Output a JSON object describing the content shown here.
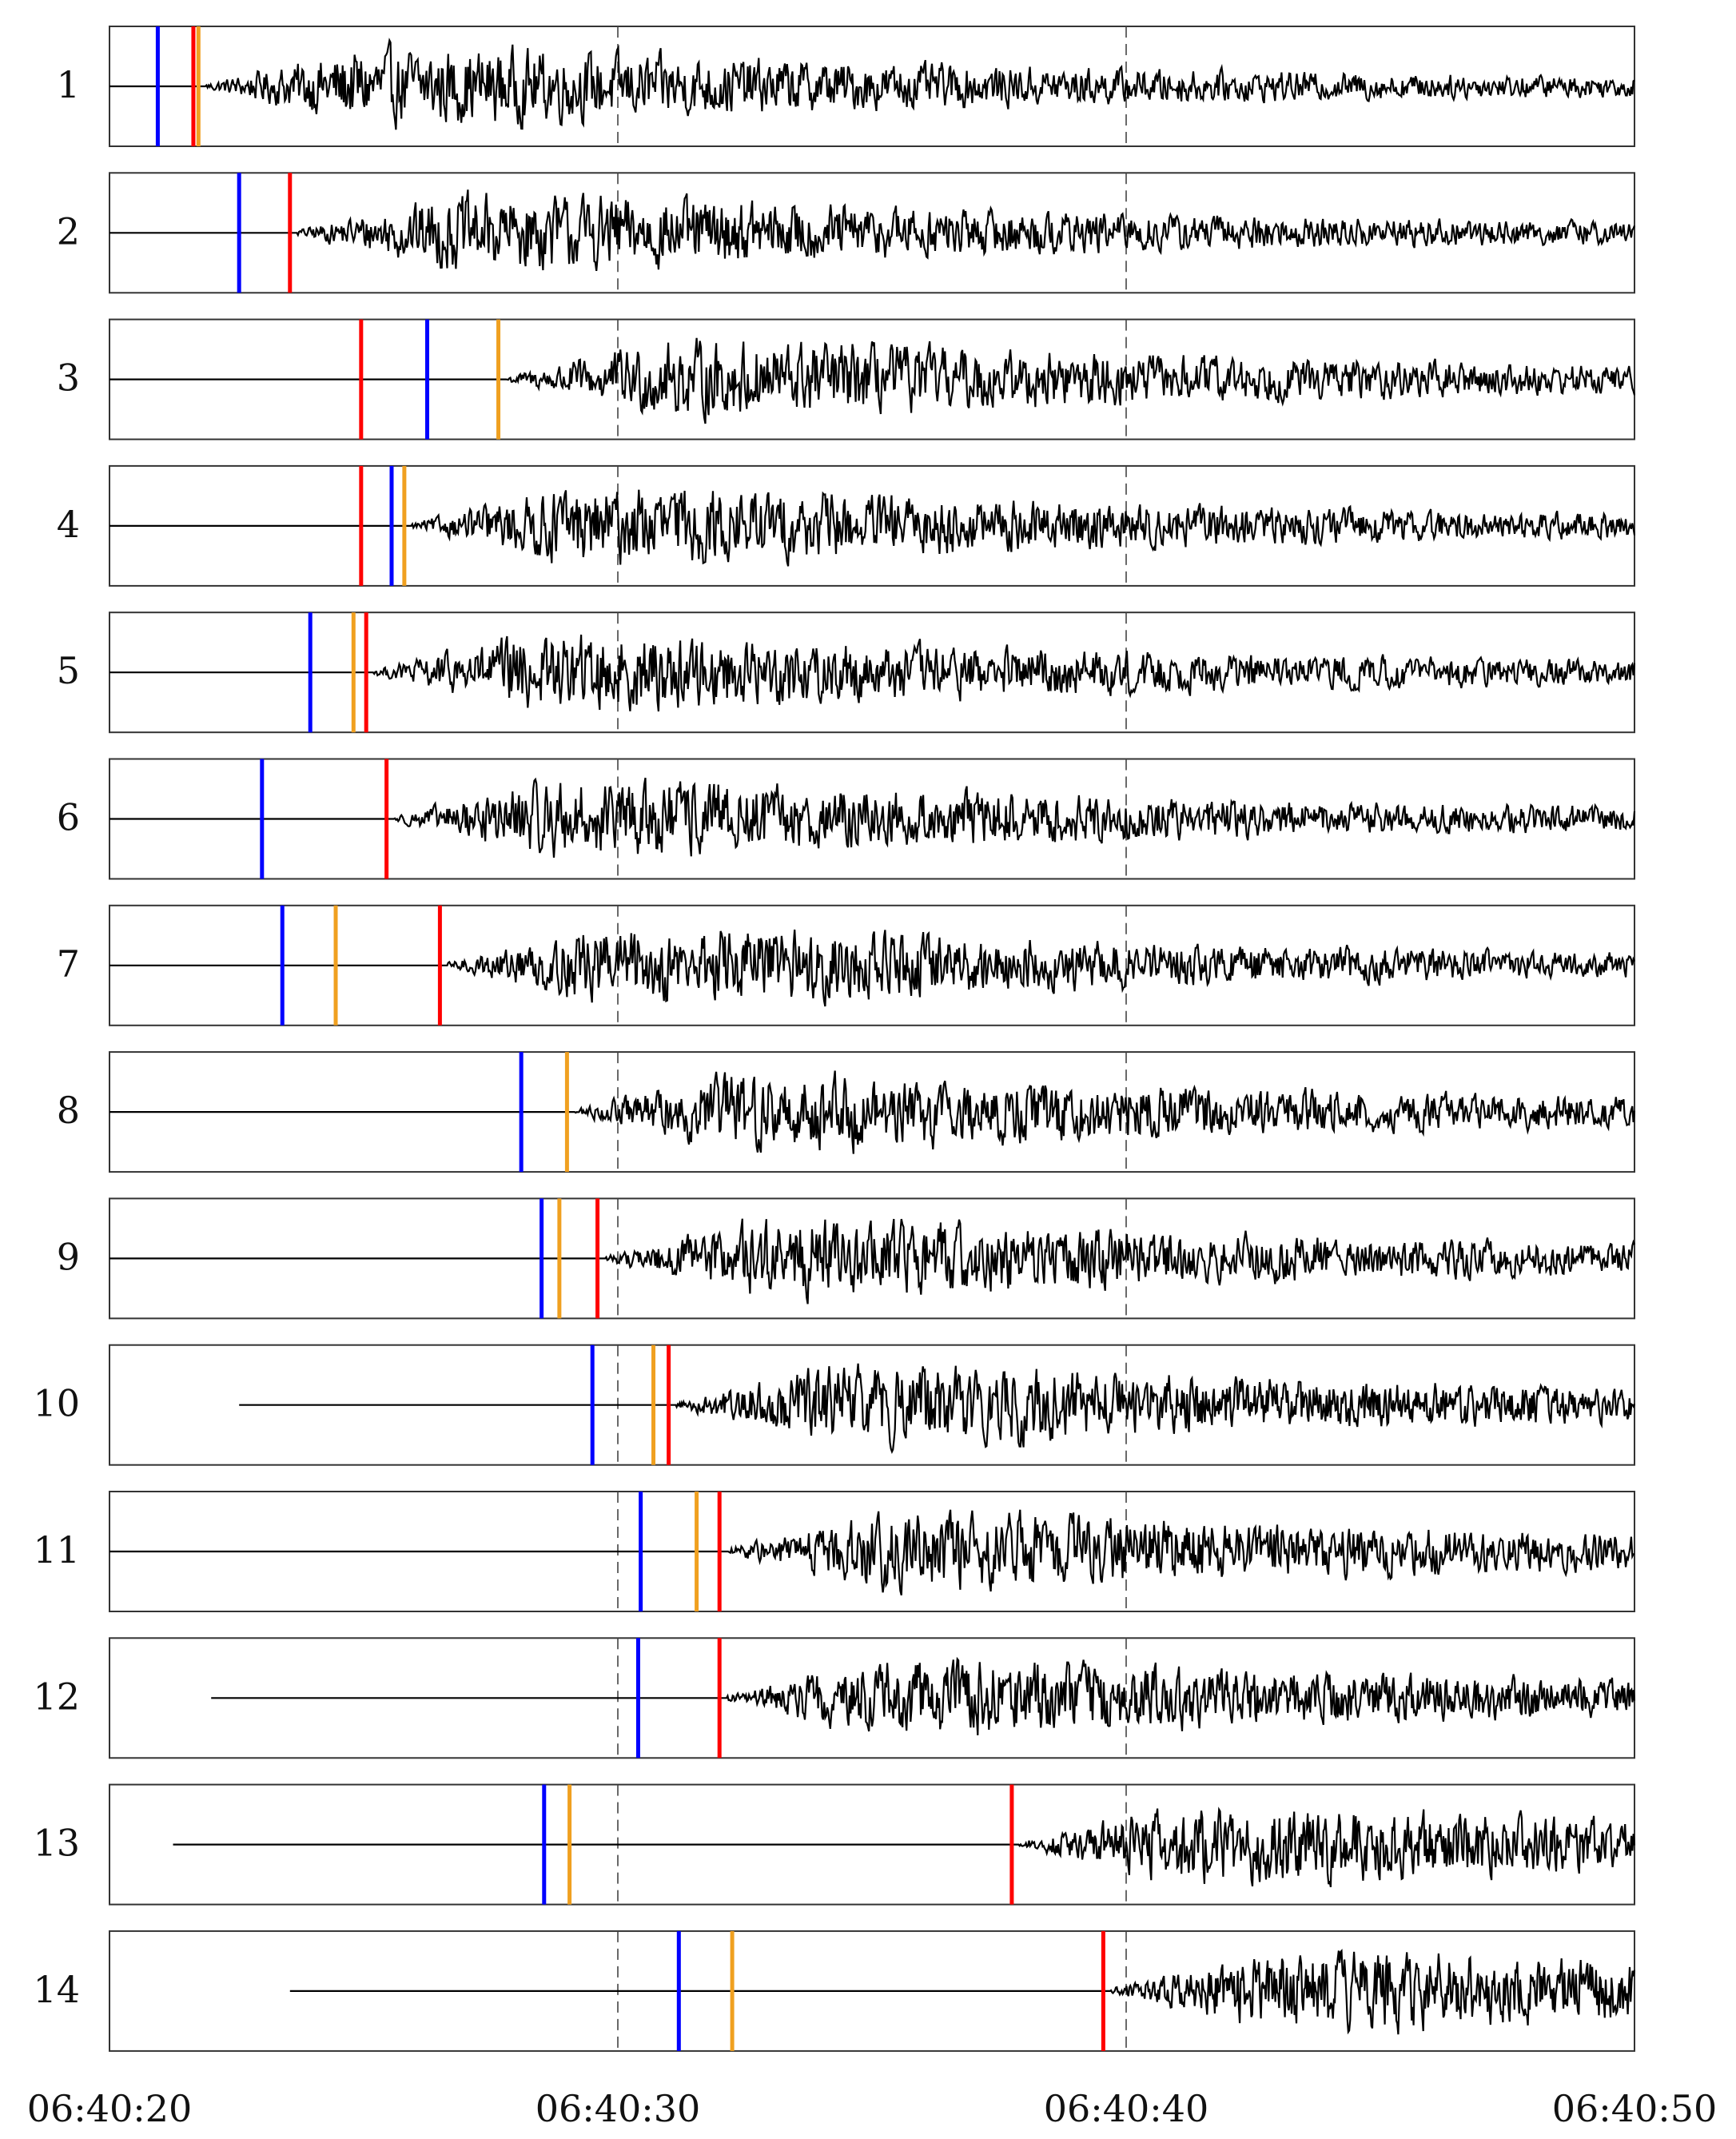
{
  "chart_data": {
    "type": "line",
    "title": "",
    "xlabel": "",
    "ylabel": "",
    "x_ticks": [
      "06:40:20",
      "06:40:30",
      "06:40:40",
      "06:40:50"
    ],
    "xlim": [
      "06:40:20",
      "06:40:50"
    ],
    "grid": "vertical dashed lines at 06:40:30 and 06:40:40",
    "pick_colors": {
      "blue": "#0000ff",
      "orange": "#f0a020",
      "red": "#ff0000",
      "trace": "#000000"
    },
    "traces": [
      {
        "label": "1",
        "data_start_s": 0.0,
        "picks": {
          "blue": 0.95,
          "red": 1.65,
          "orange": 1.75
        }
      },
      {
        "label": "2",
        "data_start_s": 0.0,
        "picks": {
          "blue": 2.55,
          "red": 3.55
        }
      },
      {
        "label": "3",
        "data_start_s": 0.0,
        "picks": {
          "red": 4.95,
          "blue": 6.25,
          "orange": 7.65
        }
      },
      {
        "label": "4",
        "data_start_s": 0.0,
        "picks": {
          "red": 4.95,
          "blue": 5.55,
          "orange": 5.8
        }
      },
      {
        "label": "5",
        "data_start_s": 0.0,
        "picks": {
          "blue": 3.95,
          "orange": 4.8,
          "red": 5.05
        }
      },
      {
        "label": "6",
        "data_start_s": 0.0,
        "picks": {
          "blue": 3.0,
          "red": 5.45
        }
      },
      {
        "label": "7",
        "data_start_s": 0.0,
        "picks": {
          "blue": 3.4,
          "orange": 4.45,
          "red": 6.5
        }
      },
      {
        "label": "8",
        "data_start_s": 0.0,
        "picks": {
          "blue": 8.1,
          "orange": 9.0
        }
      },
      {
        "label": "9",
        "data_start_s": 0.0,
        "picks": {
          "blue": 8.5,
          "orange": 8.85,
          "red": 9.6
        }
      },
      {
        "label": "10",
        "data_start_s": 2.55,
        "picks": {
          "blue": 9.5,
          "orange": 10.7,
          "red": 11.0
        }
      },
      {
        "label": "11",
        "data_start_s": 0.0,
        "picks": {
          "blue": 10.45,
          "orange": 11.55,
          "red": 12.0
        }
      },
      {
        "label": "12",
        "data_start_s": 2.0,
        "picks": {
          "blue": 10.4,
          "red": 12.0
        }
      },
      {
        "label": "13",
        "data_start_s": 1.25,
        "picks": {
          "blue": 8.55,
          "orange": 9.05,
          "red": 17.75
        }
      },
      {
        "label": "14",
        "data_start_s": 3.55,
        "picks": {
          "blue": 11.2,
          "orange": 12.25,
          "red": 19.55
        }
      }
    ]
  }
}
